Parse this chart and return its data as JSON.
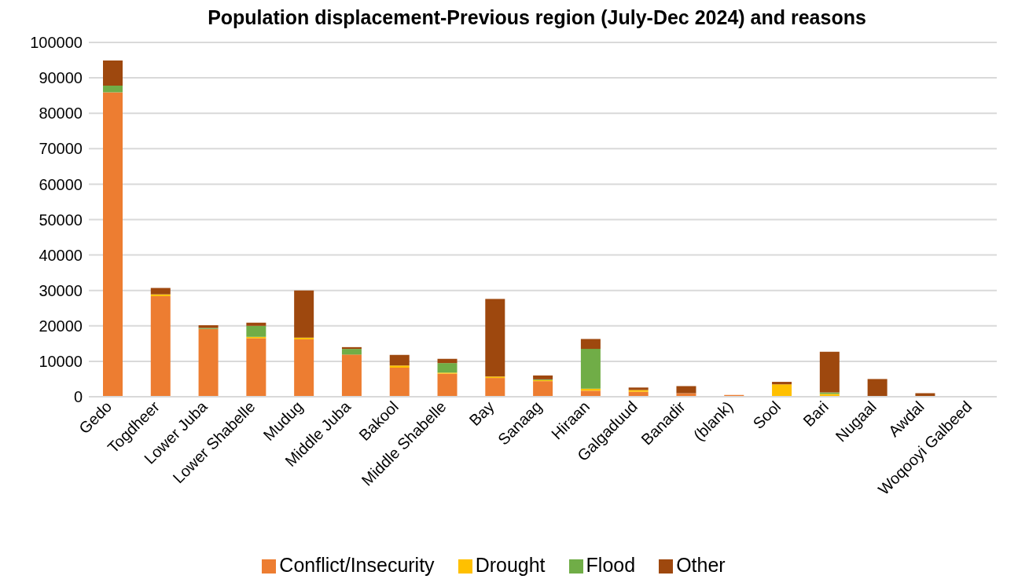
{
  "chart_data": {
    "type": "bar",
    "title": "Population displacement-Previous region (July-Dec 2024)   and  reasons",
    "stacked": true,
    "categories": [
      "Gedo",
      "Togdheer",
      "Lower Juba",
      "Lower Shabelle",
      "Mudug",
      "Middle Juba",
      "Bakool",
      "Middle Shabelle",
      "Bay",
      "Sanaag",
      "Hiraan",
      "Galgaduud",
      "Banadir",
      "(blank)",
      "Sool",
      "Bari",
      "Nugaal",
      "Awdal",
      "Woqooyi Galbeed"
    ],
    "series": [
      {
        "name": "Conflict/Insecurity",
        "color": "#ed7d31",
        "values": [
          85900,
          28400,
          19100,
          16500,
          16200,
          11900,
          8200,
          6500,
          5300,
          4400,
          1700,
          1400,
          1000,
          500,
          200,
          0,
          0,
          200,
          0
        ]
      },
      {
        "name": "Drought",
        "color": "#ffc000",
        "values": [
          0,
          500,
          0,
          400,
          500,
          0,
          600,
          300,
          400,
          300,
          600,
          500,
          0,
          null,
          3300,
          800,
          0,
          0,
          0
        ]
      },
      {
        "name": "Flood",
        "color": "#70ad47",
        "values": [
          1900,
          0,
          300,
          3100,
          0,
          1600,
          0,
          2700,
          0,
          200,
          11200,
          0,
          0,
          null,
          0,
          400,
          0,
          0,
          0
        ]
      },
      {
        "name": "Other",
        "color": "#9e480e",
        "values": [
          7100,
          1800,
          800,
          900,
          13300,
          500,
          3000,
          1200,
          21900,
          1100,
          2800,
          700,
          2000,
          null,
          700,
          11500,
          5000,
          800,
          0
        ]
      }
    ],
    "ylim": [
      0,
      100000
    ],
    "yticks": [
      0,
      10000,
      20000,
      30000,
      40000,
      50000,
      60000,
      70000,
      80000,
      90000,
      100000
    ],
    "grid": "y",
    "legend": "bottom"
  }
}
